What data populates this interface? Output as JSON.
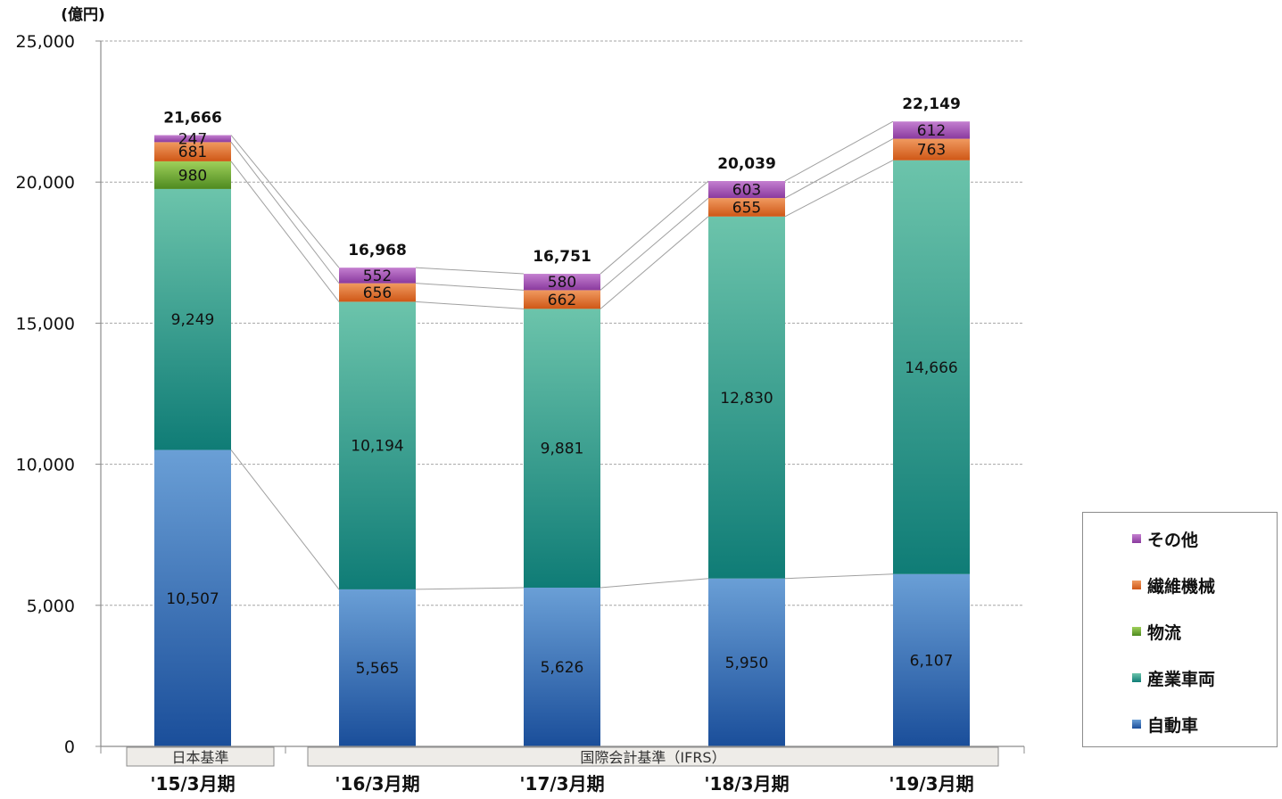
{
  "chart_data": {
    "type": "bar",
    "stacked": true,
    "unit_label": "(億円)",
    "categories": [
      "'15/3月期",
      "'16/3月期",
      "'17/3月期",
      "'18/3月期",
      "'19/3月期"
    ],
    "series": [
      {
        "name": "自動車",
        "values": [
          10507,
          5565,
          5626,
          5950,
          6107
        ],
        "labels": [
          "10,507",
          "5,565",
          "5,626",
          "5,950",
          "6,107"
        ]
      },
      {
        "name": "産業車両",
        "values": [
          9249,
          10194,
          9881,
          12830,
          14666
        ],
        "labels": [
          "9,249",
          "10,194",
          "9,881",
          "12,830",
          "14,666"
        ]
      },
      {
        "name": "物流",
        "values": [
          980,
          0,
          0,
          0,
          0
        ],
        "labels": [
          "980",
          "",
          "",
          "",
          ""
        ]
      },
      {
        "name": "繊維機械",
        "values": [
          681,
          656,
          662,
          655,
          763
        ],
        "labels": [
          "681",
          "656",
          "662",
          "655",
          "763"
        ]
      },
      {
        "name": "その他",
        "values": [
          247,
          552,
          580,
          603,
          612
        ],
        "labels": [
          "247",
          "552",
          "580",
          "603",
          "612"
        ]
      }
    ],
    "totals": [
      21666,
      16968,
      16751,
      20039,
      22149
    ],
    "total_labels": [
      "21,666",
      "16,968",
      "16,751",
      "20,039",
      "22,149"
    ],
    "ylim": [
      0,
      25000
    ],
    "yticks": [
      0,
      5000,
      10000,
      15000,
      20000,
      25000
    ],
    "ytick_labels": [
      "0",
      "5,000",
      "10,000",
      "15,000",
      "20,000",
      "25,000"
    ],
    "grid": true,
    "standards": [
      {
        "label": "日本基準",
        "covers": [
          0
        ]
      },
      {
        "label": "国際会計基準（IFRS）",
        "covers": [
          1,
          2,
          3,
          4
        ]
      }
    ],
    "legend": {
      "placement": "right",
      "order": [
        "その他",
        "繊維機械",
        "物流",
        "産業車両",
        "自動車"
      ]
    },
    "colors": {
      "自動車": [
        "#6a9fd6",
        "#1a4e9a"
      ],
      "産業車両": [
        "#6cc4ab",
        "#0f7c76"
      ],
      "物流": [
        "#9fd05a",
        "#4e8a20"
      ],
      "繊維機械": [
        "#f09a60",
        "#cf5716"
      ],
      "その他": [
        "#c47fd0",
        "#8a3a9e"
      ],
      "grid": "#a6a6a6",
      "axis": "#8c8c8c",
      "connector": "#a0a0a0",
      "standard_box": "#eeece8"
    }
  }
}
